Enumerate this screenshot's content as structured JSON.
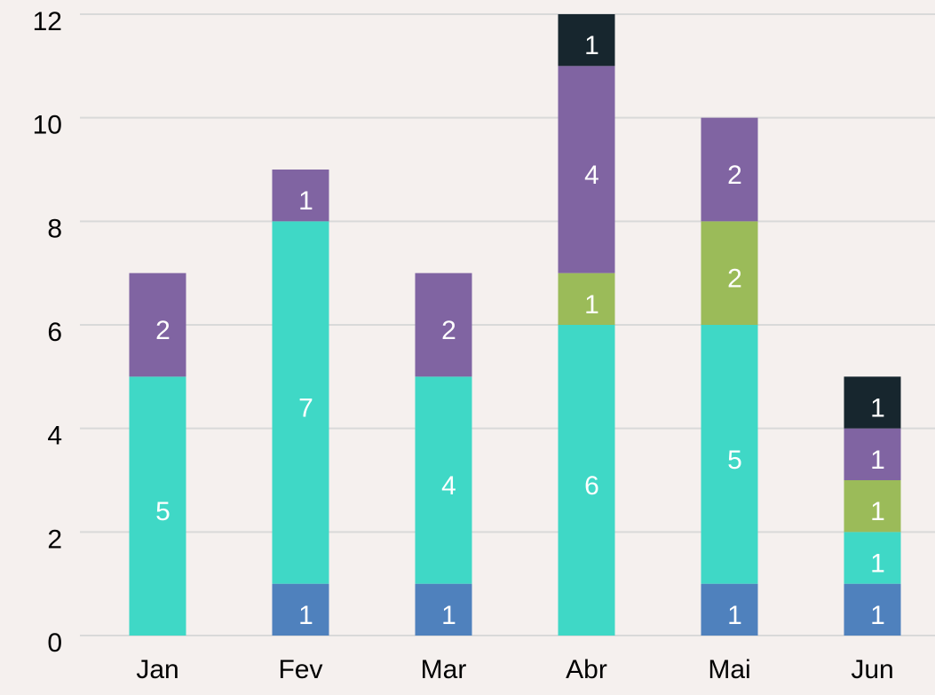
{
  "chart_data": {
    "type": "bar",
    "stacked": true,
    "categories": [
      "Jan",
      "Fev",
      "Mar",
      "Abr",
      "Mai",
      "Jun"
    ],
    "series": [
      {
        "color": "#4f81bd",
        "values": [
          0,
          1,
          1,
          0,
          1,
          1
        ]
      },
      {
        "color": "#3fd8c6",
        "values": [
          5,
          7,
          4,
          6,
          5,
          1
        ]
      },
      {
        "color": "#9bbb59",
        "values": [
          0,
          0,
          0,
          1,
          2,
          1
        ]
      },
      {
        "color": "#8064a2",
        "values": [
          2,
          1,
          2,
          4,
          2,
          1
        ]
      },
      {
        "color": "#17262e",
        "values": [
          0,
          0,
          0,
          1,
          0,
          1
        ]
      }
    ],
    "ylim": [
      0,
      12
    ],
    "yticks": [
      0,
      2,
      4,
      6,
      8,
      10,
      12
    ],
    "grid": true
  }
}
